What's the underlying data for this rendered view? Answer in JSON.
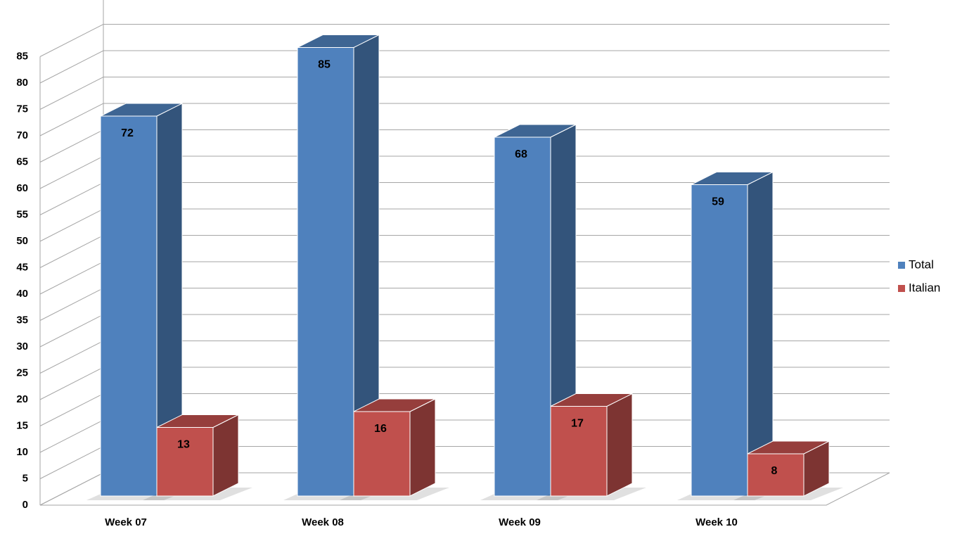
{
  "chart_data": {
    "type": "bar3d",
    "categories": [
      "Week 07",
      "Week 08",
      "Week 09",
      "Week 10"
    ],
    "series": [
      {
        "name": "Total",
        "color": "#4f81bd",
        "values": [
          72,
          85,
          68,
          59
        ]
      },
      {
        "name": "Italian",
        "color": "#c0504d",
        "values": [
          13,
          16,
          17,
          8
        ]
      }
    ],
    "ylim": [
      0,
      85
    ],
    "yticks": [
      0,
      5,
      10,
      15,
      20,
      25,
      30,
      35,
      40,
      45,
      50,
      55,
      60,
      65,
      70,
      75,
      80,
      85
    ],
    "grid": true,
    "legend": "right"
  }
}
